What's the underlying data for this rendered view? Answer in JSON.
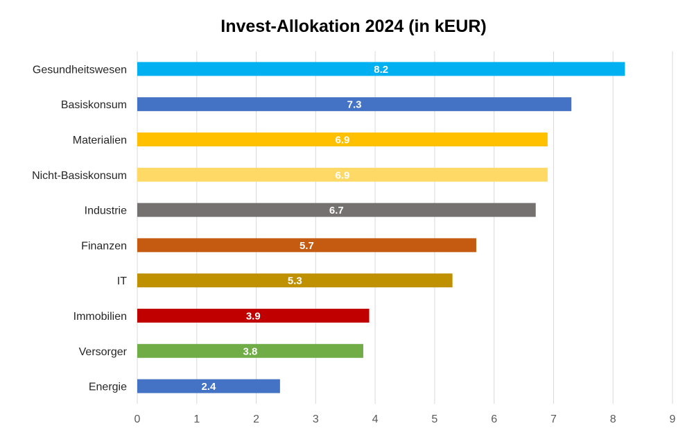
{
  "chart_data": {
    "type": "bar",
    "orientation": "horizontal",
    "title": "Invest-Allokation 2024 (in kEUR)",
    "xlabel": "",
    "ylabel": "",
    "xlim": [
      0,
      9
    ],
    "x_ticks": [
      "0",
      "1",
      "2",
      "3",
      "4",
      "5",
      "6",
      "7",
      "8",
      "9"
    ],
    "grid": "vertical",
    "legend": "none",
    "categories": [
      "Gesundheitswesen",
      "Basiskonsum",
      "Materialien",
      "Nicht-Basiskonsum",
      "Industrie",
      "Finanzen",
      "IT",
      "Immobilien",
      "Versorger",
      "Energie"
    ],
    "values": [
      8.2,
      7.3,
      6.9,
      6.9,
      6.7,
      5.7,
      5.3,
      3.9,
      3.8,
      2.4
    ],
    "value_labels": [
      "8.2",
      "7.3",
      "6.9",
      "6.9",
      "6.7",
      "5.7",
      "5.3",
      "3.9",
      "3.8",
      "2.4"
    ],
    "colors": [
      "#00B0F0",
      "#4472C4",
      "#FFC000",
      "#FFD966",
      "#767171",
      "#C55A11",
      "#BF9000",
      "#C00000",
      "#70AD47",
      "#4472C4"
    ]
  }
}
